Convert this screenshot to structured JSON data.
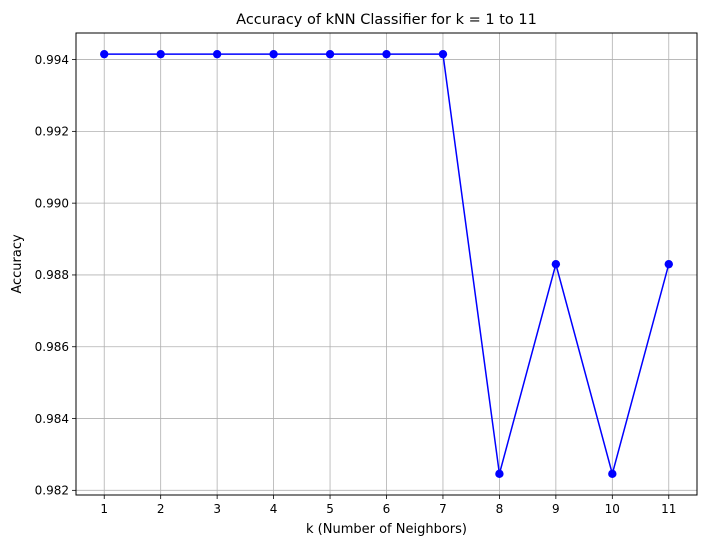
{
  "chart_data": {
    "type": "line",
    "title": "Accuracy of kNN Classifier for k = 1 to 11",
    "xlabel": "k (Number of Neighbors)",
    "ylabel": "Accuracy",
    "x": [
      1,
      2,
      3,
      4,
      5,
      6,
      7,
      8,
      9,
      10,
      11
    ],
    "series": [
      {
        "values": [
          0.99415,
          0.99415,
          0.99415,
          0.99415,
          0.99415,
          0.99415,
          0.99415,
          0.98246,
          0.9883,
          0.98246,
          0.9883
        ],
        "color": "#0000ff",
        "marker": "circle"
      }
    ],
    "xlim": [
      0.5,
      11.5
    ],
    "ylim": [
      0.98187,
      0.99474
    ],
    "xticks": [
      1,
      2,
      3,
      4,
      5,
      6,
      7,
      8,
      9,
      10,
      11
    ],
    "yticks": [
      0.982,
      0.984,
      0.986,
      0.988,
      0.99,
      0.992,
      0.994
    ],
    "ytick_labels": [
      "0.982",
      "0.984",
      "0.986",
      "0.988",
      "0.990",
      "0.992",
      "0.994"
    ],
    "grid": true,
    "legend": "none"
  }
}
